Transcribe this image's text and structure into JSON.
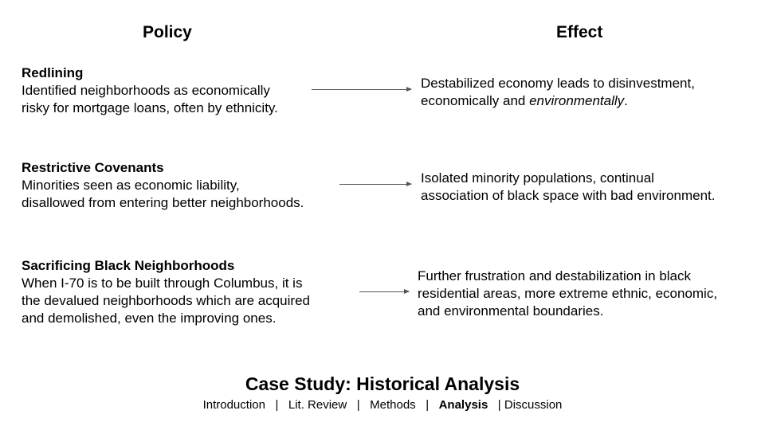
{
  "headers": {
    "policy": "Policy",
    "effect": "Effect"
  },
  "rows": [
    {
      "policy_title": "Redlining",
      "policy_line1": "Identified neighborhoods as economically",
      "policy_line2": "risky for mortgage loans, often by ethnicity.",
      "effect_line1": "Destabilized economy leads to disinvestment,",
      "effect_line2_plain": "economically and ",
      "effect_line2_italic": "environmentally",
      "effect_line2_end": "."
    },
    {
      "policy_title": "Restrictive Covenants",
      "policy_line1": "Minorities seen as economic liability,",
      "policy_line2": "disallowed from entering better neighborhoods.",
      "effect_line1": "Isolated minority populations, continual",
      "effect_line2": "association of black space with bad environment."
    },
    {
      "policy_title": "Sacrificing Black Neighborhoods",
      "policy_line1": "When I-70 is to be built through Columbus, it is",
      "policy_line2": "the devalued neighborhoods which are acquired",
      "policy_line3": "and demolished, even the improving ones.",
      "effect_line1": "Further frustration and destabilization in black",
      "effect_line2": "residential areas, more extreme ethnic, economic,",
      "effect_line3": "and environmental boundaries."
    }
  ],
  "footer": {
    "title": "Case Study: Historical Analysis",
    "nav": [
      "Introduction",
      "Lit. Review",
      "Methods",
      "Analysis",
      "Discussion"
    ],
    "active": "Analysis"
  }
}
